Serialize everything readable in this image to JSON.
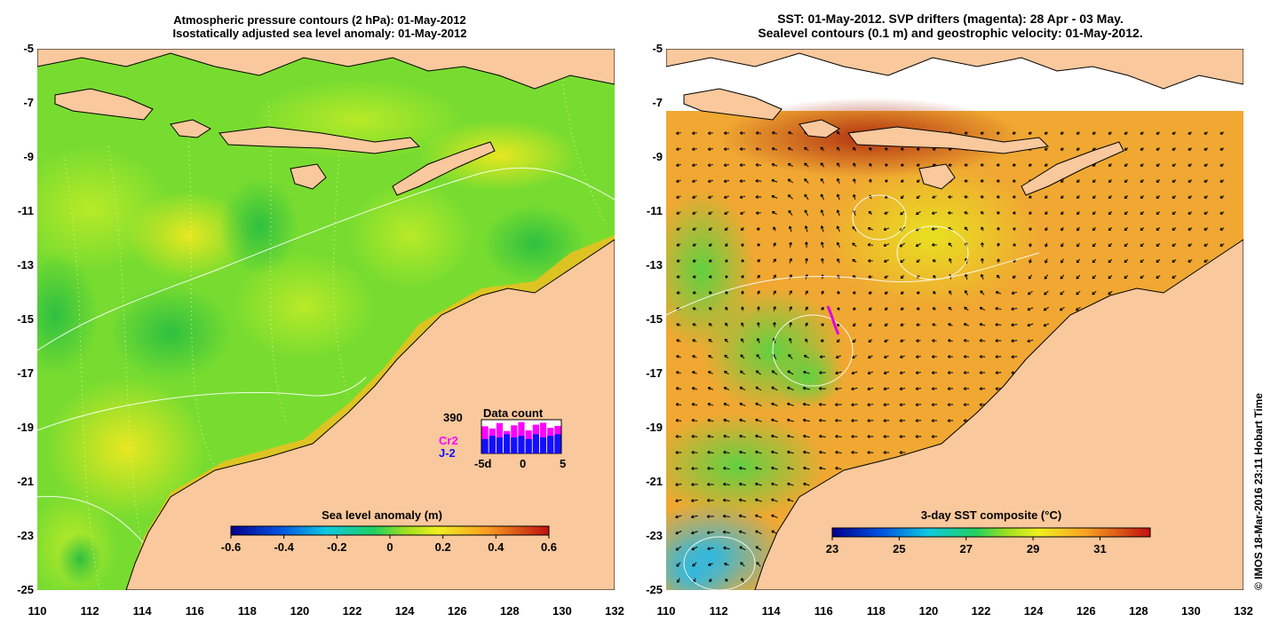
{
  "left_map": {
    "title_line1": "Atmospheric pressure contours (2 hPa): 01-May-2012",
    "title_line2": "Isostatically adjusted sea level anomaly: 01-May-2012",
    "colorbar": {
      "label": "Sea level anomaly (m)",
      "ticks": [
        "-0.6",
        "-0.4",
        "-0.2",
        "0",
        "0.2",
        "0.4",
        "0.6"
      ],
      "range": [
        -0.6,
        0.6
      ]
    },
    "inset": {
      "title": "Data count",
      "count": "390",
      "series_cr2": "Cr2",
      "series_j2": "J-2",
      "x_ticks": [
        "-5d",
        "0",
        "5"
      ],
      "cr2_values": [
        0.85,
        0.78,
        0.95,
        0.7,
        0.88,
        0.98,
        0.72,
        0.9,
        0.96,
        0.8,
        0.86
      ],
      "j2_values": [
        0.45,
        0.55,
        0.5,
        0.6,
        0.5,
        0.55,
        0.45,
        0.6,
        0.5,
        0.55,
        0.6
      ]
    }
  },
  "right_map": {
    "title_line1": "SST: 01-May-2012. SVP drifters (magenta): 28 Apr - 03 May.",
    "title_line2": "Sealevel contours (0.1 m) and geostrophic velocity: 01-May-2012.",
    "colorbar": {
      "label": "3-day SST composite (°C)",
      "ticks": [
        "23",
        "25",
        "27",
        "29",
        "31"
      ],
      "range": [
        23,
        32.5
      ]
    }
  },
  "axes": {
    "lat_labels": [
      "-5",
      "-7",
      "-9",
      "-11",
      "-13",
      "-15",
      "-17",
      "-19",
      "-21",
      "-23",
      "-25"
    ],
    "lon_labels": [
      "110",
      "112",
      "114",
      "116",
      "118",
      "120",
      "122",
      "124",
      "126",
      "128",
      "130",
      "132"
    ]
  },
  "credit": "© IMOS 18-Mar-2016 23:11 Hobart Time",
  "colors": {
    "land": "#f9c89c",
    "slanom_base": "#5fd838",
    "sst_base": "#f0a832",
    "drifter": "#e000e0",
    "cr2": "#ff00ff",
    "j2": "#1010ff"
  }
}
